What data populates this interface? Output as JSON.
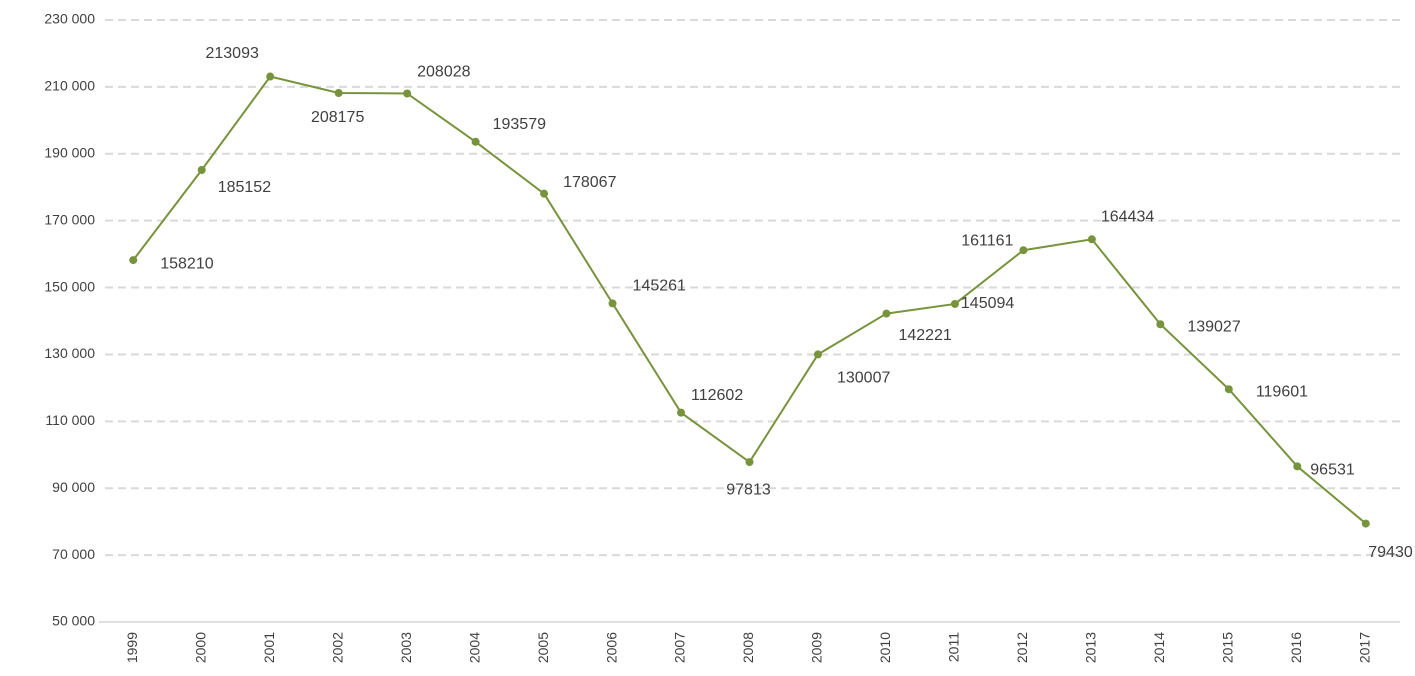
{
  "chart_data": {
    "type": "line",
    "categories": [
      "1999",
      "2000",
      "2001",
      "2002",
      "2003",
      "2004",
      "2005",
      "2006",
      "2007",
      "2008",
      "2009",
      "2010",
      "2011",
      "2012",
      "2013",
      "2014",
      "2015",
      "2016",
      "2017"
    ],
    "series": [
      {
        "color": "#77933c",
        "values": [
          158210,
          185152,
          213093,
          208175,
          208028,
          193579,
          178067,
          145261,
          112602,
          97813,
          130007,
          142221,
          145094,
          161161,
          164434,
          139027,
          119601,
          96531,
          79430
        ]
      }
    ],
    "ylim": [
      50000,
      230000
    ],
    "yticks": [
      {
        "value": 50000,
        "label": "50 000"
      },
      {
        "value": 70000,
        "label": "70 000"
      },
      {
        "value": 90000,
        "label": "90 000"
      },
      {
        "value": 110000,
        "label": "110 000"
      },
      {
        "value": 130000,
        "label": "130 000"
      },
      {
        "value": 150000,
        "label": "150 000"
      },
      {
        "value": 170000,
        "label": "170 000"
      },
      {
        "value": 190000,
        "label": "190 000"
      },
      {
        "value": 210000,
        "label": "210 000"
      },
      {
        "value": 230000,
        "label": "230 000"
      }
    ],
    "grid": true
  }
}
